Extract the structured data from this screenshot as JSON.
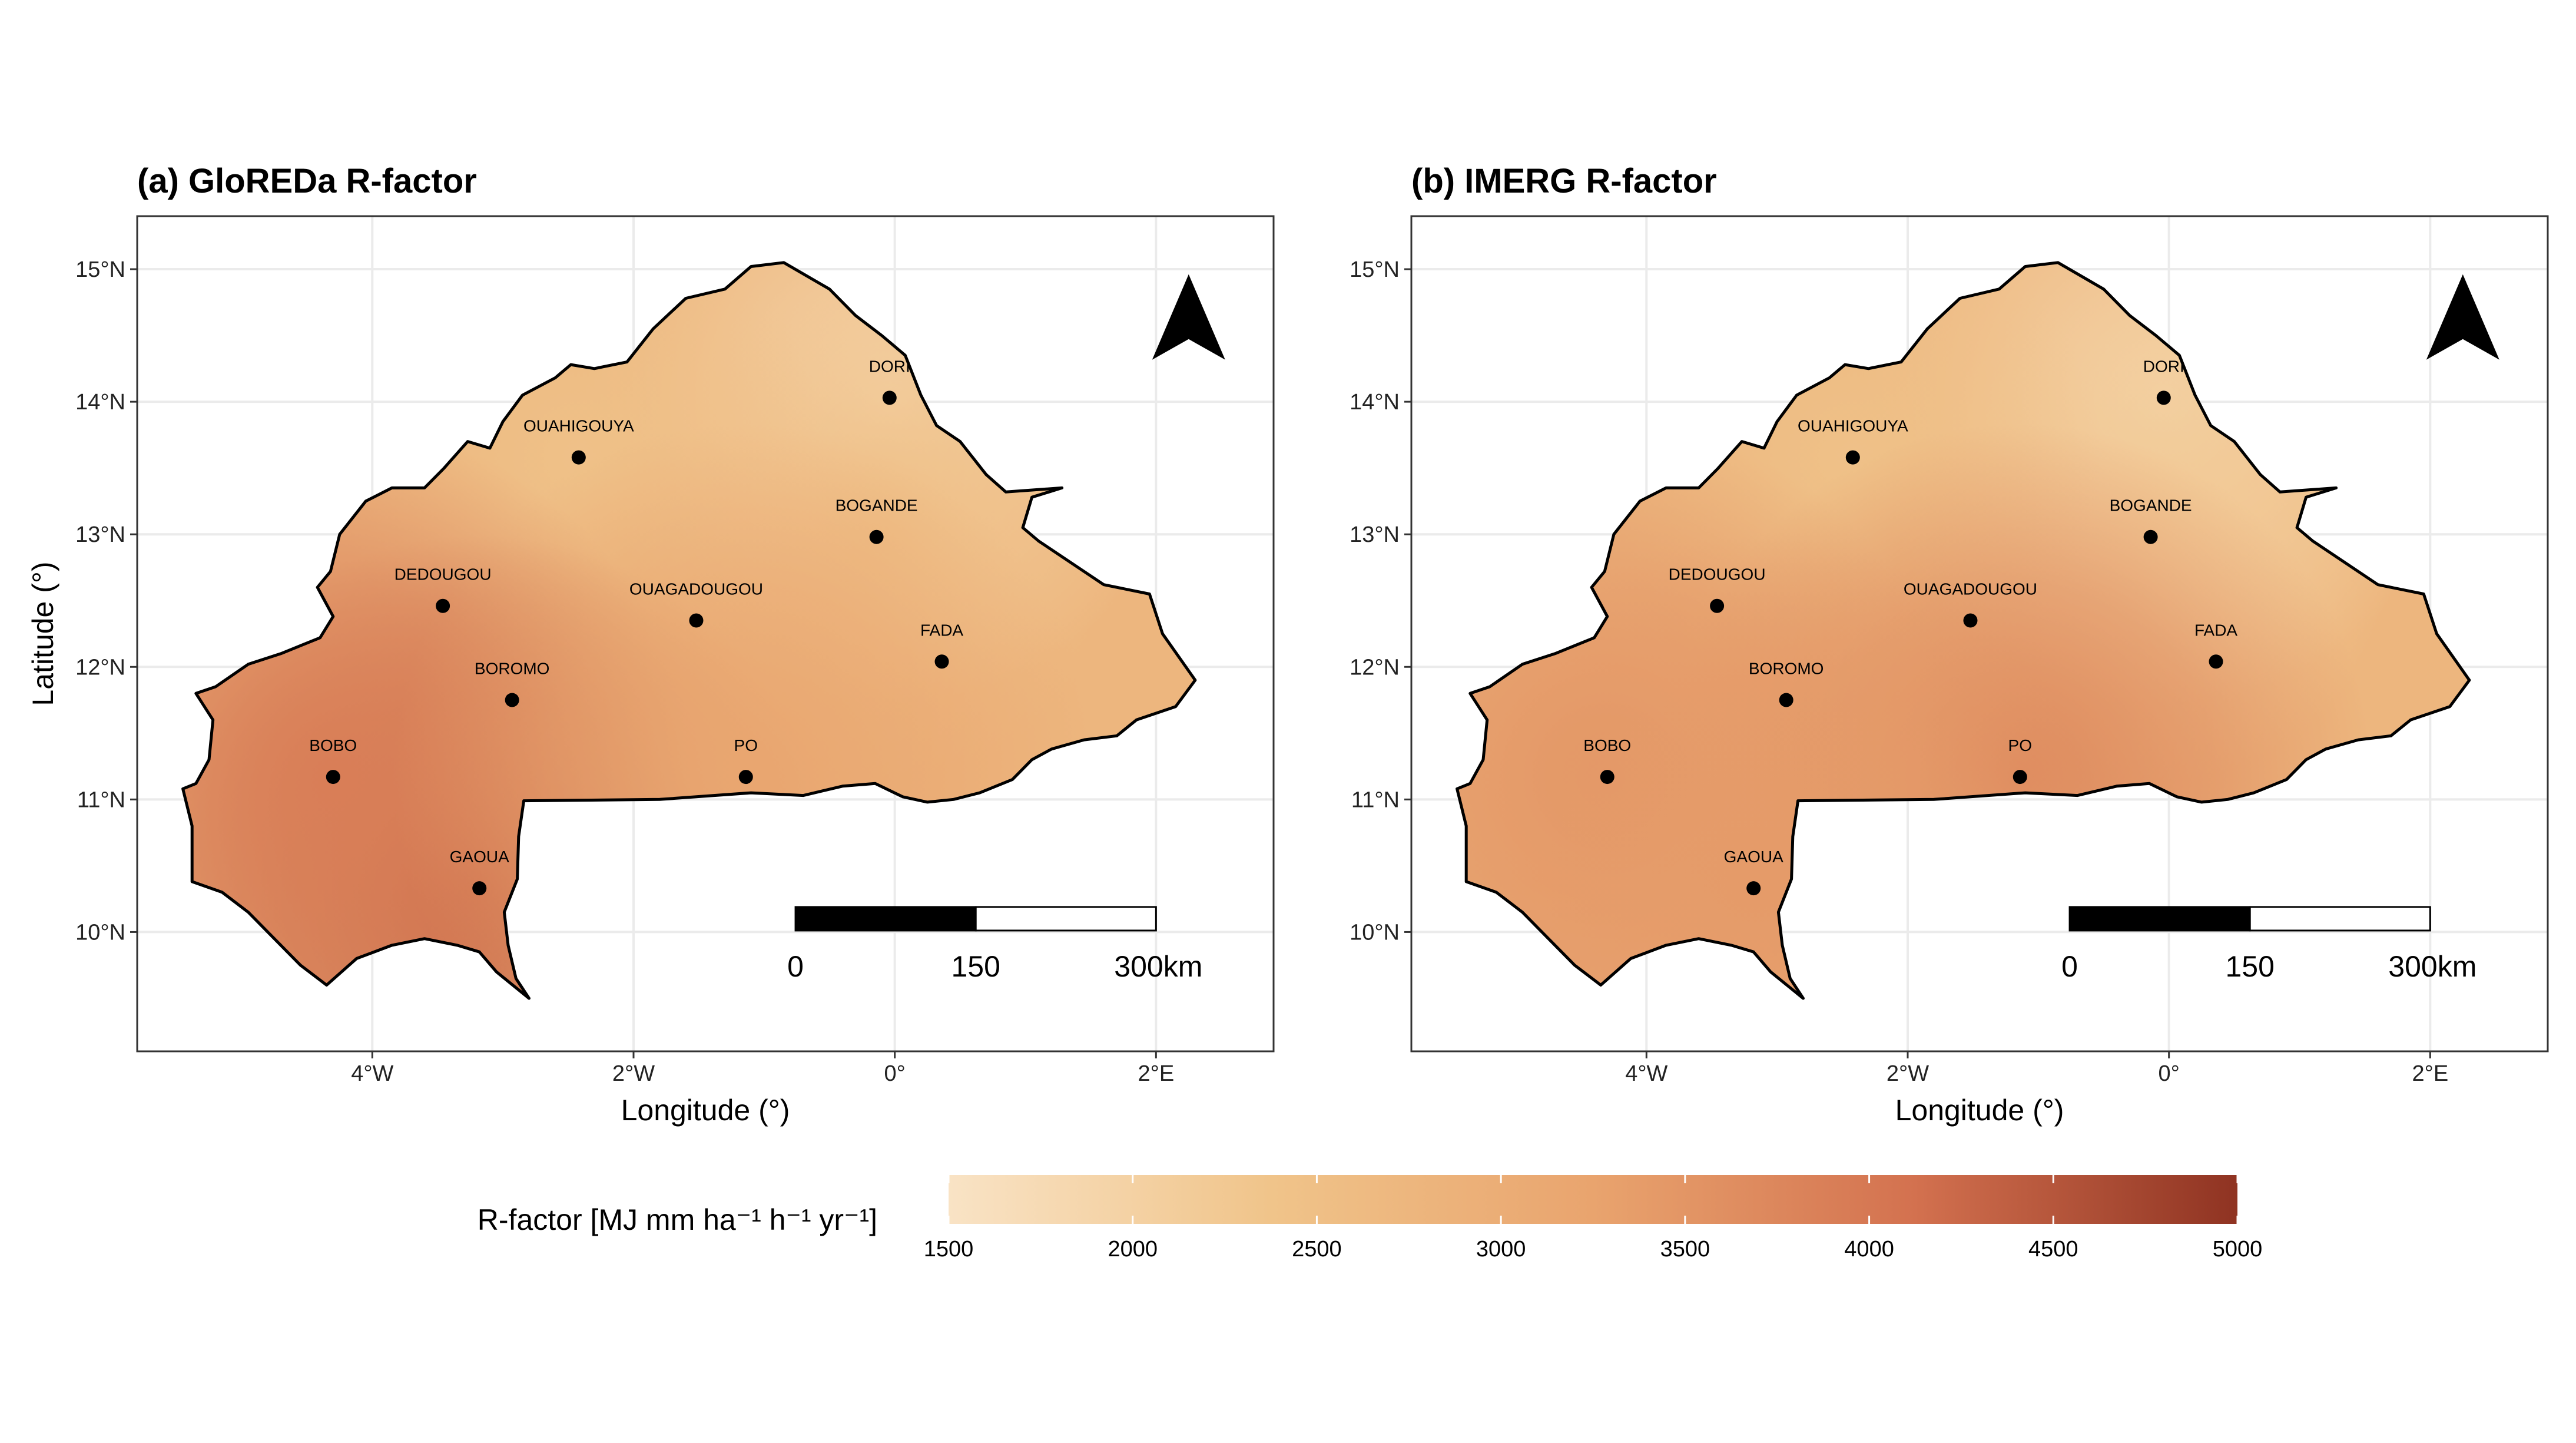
{
  "panels": [
    {
      "title": "(a) GloREDa R-factor",
      "xlabel": "Longitude (°)",
      "ylabel": "Latitude (°)",
      "hotspots": [
        {
          "name": "GAOUA",
          "value": 4300
        },
        {
          "name": "BOBO",
          "value": 3900
        },
        {
          "name": "PO",
          "value": 3200
        }
      ]
    },
    {
      "title": "(b) IMERG R-factor",
      "xlabel": "Longitude (°)",
      "ylabel": "",
      "hotspots": [
        {
          "name": "PO",
          "value": 3700
        },
        {
          "name": "BOBO",
          "value": 3500
        },
        {
          "name": "GAOUA",
          "value": 3400
        }
      ]
    }
  ],
  "axes": {
    "xticks": [
      {
        "value": -4,
        "label": "4°W"
      },
      {
        "value": -2,
        "label": "2°W"
      },
      {
        "value": 0,
        "label": "0°"
      },
      {
        "value": 2,
        "label": "2°E"
      }
    ],
    "yticks": [
      {
        "value": 10,
        "label": "10°N"
      },
      {
        "value": 11,
        "label": "11°N"
      },
      {
        "value": 12,
        "label": "12°N"
      },
      {
        "value": 13,
        "label": "13°N"
      },
      {
        "value": 14,
        "label": "14°N"
      },
      {
        "value": 15,
        "label": "15°N"
      }
    ],
    "xlim": [
      -5.8,
      2.9
    ],
    "ylim": [
      9.1,
      15.4
    ],
    "grid": true
  },
  "cities": [
    {
      "name": "DORI",
      "lon": -0.04,
      "lat": 14.03
    },
    {
      "name": "OUAHIGOUYA",
      "lon": -2.42,
      "lat": 13.58
    },
    {
      "name": "BOGANDE",
      "lon": -0.14,
      "lat": 12.98
    },
    {
      "name": "DEDOUGOU",
      "lon": -3.46,
      "lat": 12.46
    },
    {
      "name": "OUAGADOUGOU",
      "lon": -1.52,
      "lat": 12.35
    },
    {
      "name": "FADA",
      "lon": 0.36,
      "lat": 12.04
    },
    {
      "name": "BOROMO",
      "lon": -2.93,
      "lat": 11.75
    },
    {
      "name": "BOBO",
      "lon": -4.3,
      "lat": 11.17
    },
    {
      "name": "PO",
      "lon": -1.14,
      "lat": 11.17
    },
    {
      "name": "GAOUA",
      "lon": -3.18,
      "lat": 10.33
    }
  ],
  "scalebar": {
    "labels": [
      "0",
      "150",
      "300km"
    ]
  },
  "legend": {
    "title": "R-factor [MJ mm ha⁻¹ h⁻¹ yr⁻¹]",
    "min": 1500,
    "max": 5000,
    "ticks": [
      "1500",
      "2000",
      "2500",
      "3000",
      "3500",
      "4000",
      "4500",
      "5000"
    ],
    "colors": [
      "#f9e3c5",
      "#f0c48a",
      "#e9a46e",
      "#d3714f",
      "#8f3322"
    ]
  },
  "base_value": 2750
}
